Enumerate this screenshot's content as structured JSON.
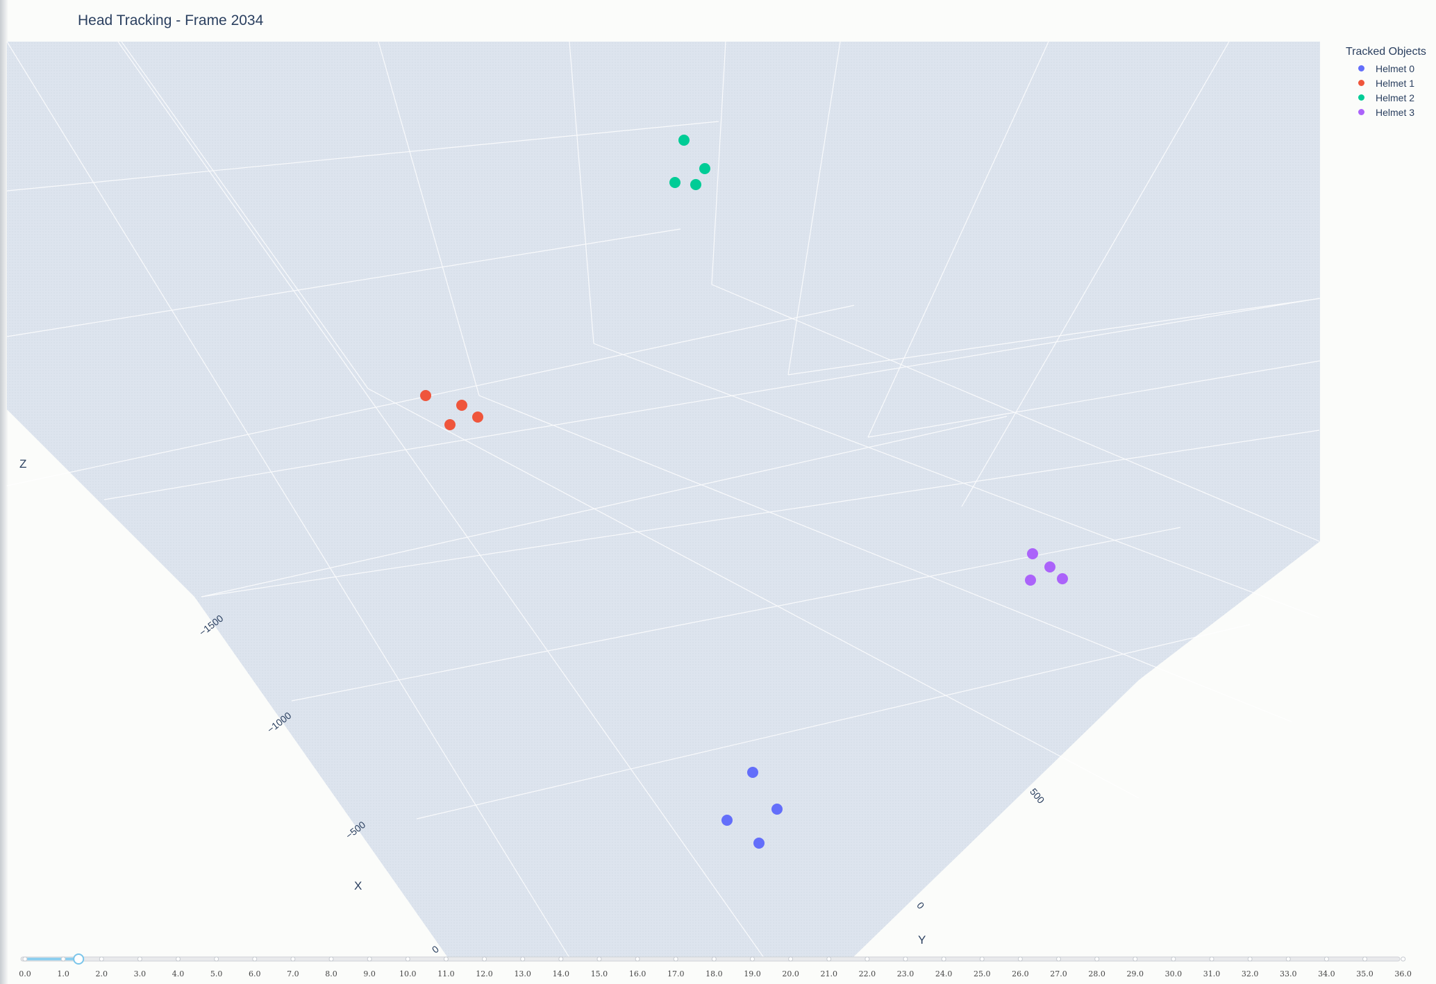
{
  "title": "Head Tracking - Frame 2034",
  "legend": {
    "title": "Tracked Objects",
    "items": [
      {
        "label": "Helmet 0",
        "color": "#636efa"
      },
      {
        "label": "Helmet 1",
        "color": "#ef553b"
      },
      {
        "label": "Helmet 2",
        "color": "#00cc96"
      },
      {
        "label": "Helmet 3",
        "color": "#ab63fa"
      }
    ]
  },
  "chart_data": {
    "type": "scatter",
    "dimensions": 3,
    "axes": {
      "x": {
        "title": "X",
        "ticks": [
          "−1500",
          "−1000",
          "−500",
          "0"
        ]
      },
      "y": {
        "title": "Y",
        "ticks": [
          "0",
          "500"
        ]
      },
      "z": {
        "title": "Z",
        "ticks": []
      }
    },
    "series": [
      {
        "name": "Helmet 0",
        "color": "#636efa",
        "points": [
          [
            1084,
            1113
          ],
          [
            1119,
            1166
          ],
          [
            1047,
            1182
          ],
          [
            1093,
            1215
          ]
        ]
      },
      {
        "name": "Helmet 1",
        "color": "#ef553b",
        "points": [
          [
            613,
            570
          ],
          [
            665,
            584
          ],
          [
            688,
            601
          ],
          [
            648,
            612
          ]
        ]
      },
      {
        "name": "Helmet 2",
        "color": "#00cc96",
        "points": [
          [
            985,
            202
          ],
          [
            1015,
            243
          ],
          [
            972,
            263
          ],
          [
            1002,
            266
          ]
        ]
      },
      {
        "name": "Helmet 3",
        "color": "#ab63fa",
        "points": [
          [
            1487,
            798
          ],
          [
            1512,
            817
          ],
          [
            1530,
            834
          ],
          [
            1484,
            836
          ]
        ]
      }
    ],
    "grid": true
  },
  "slider": {
    "current": 1.4,
    "labels": [
      "0.0",
      "1.0",
      "2.0",
      "3.0",
      "4.0",
      "5.0",
      "6.0",
      "7.0",
      "8.0",
      "9.0",
      "10.0",
      "11.0",
      "12.0",
      "13.0",
      "14.0",
      "15.0",
      "16.0",
      "17.0",
      "18.0",
      "19.0",
      "20.0",
      "21.0",
      "22.0",
      "23.0",
      "24.0",
      "25.0",
      "26.0",
      "27.0",
      "28.0",
      "29.0",
      "30.0",
      "31.0",
      "32.0",
      "33.0",
      "34.0",
      "35.0",
      "36.0"
    ]
  }
}
